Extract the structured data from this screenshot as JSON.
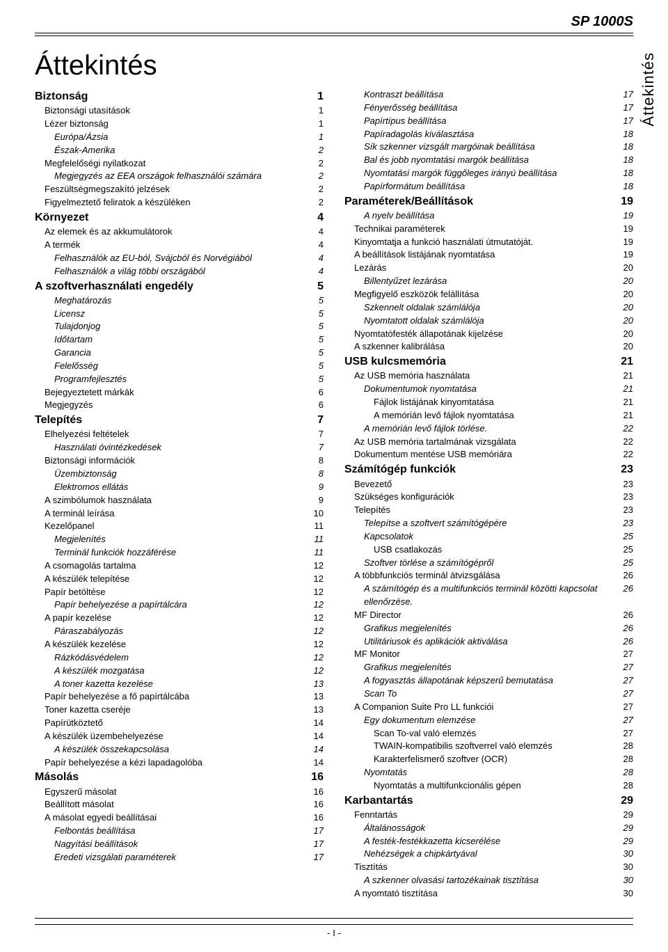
{
  "header": {
    "model": "SP 1000S",
    "side_tab": "Áttekintés",
    "title": "Áttekintés",
    "footer": "- I -"
  },
  "left": [
    {
      "t": "Biztonság",
      "p": "1",
      "lvl": 0
    },
    {
      "t": "Biztonsági utasítások",
      "p": "1",
      "lvl": 1
    },
    {
      "t": "Lézer biztonság",
      "p": "1",
      "lvl": 1
    },
    {
      "t": "Európa/Ázsia",
      "p": "1",
      "lvl": 2,
      "i": true
    },
    {
      "t": "Észak-Amerika",
      "p": "2",
      "lvl": 2,
      "i": true
    },
    {
      "t": "Megfelelőségi nyilatkozat",
      "p": "2",
      "lvl": 1
    },
    {
      "t": "Megjegyzés az EEA országok felhasználói számára",
      "p": "2",
      "lvl": 2,
      "i": true
    },
    {
      "t": "Feszültségmegszakító jelzések",
      "p": "2",
      "lvl": 1
    },
    {
      "t": "Figyelmeztető feliratok a készüléken",
      "p": "2",
      "lvl": 1
    },
    {
      "t": "Környezet",
      "p": "4",
      "lvl": 0
    },
    {
      "t": "Az elemek és az akkumulátorok",
      "p": "4",
      "lvl": 1
    },
    {
      "t": "A termék",
      "p": "4",
      "lvl": 1
    },
    {
      "t": "Felhasználók az EU-ból, Svájcból és Norvégiából",
      "p": "4",
      "lvl": 2,
      "i": true
    },
    {
      "t": "Felhasználók a világ többi országából",
      "p": "4",
      "lvl": 2,
      "i": true
    },
    {
      "t": "A szoftverhasználati engedély",
      "p": "5",
      "lvl": 0
    },
    {
      "t": "Meghatározás",
      "p": "5",
      "lvl": 2,
      "i": true
    },
    {
      "t": "Licensz",
      "p": "5",
      "lvl": 2,
      "i": true
    },
    {
      "t": "Tulajdonjog",
      "p": "5",
      "lvl": 2,
      "i": true
    },
    {
      "t": "Időtartam",
      "p": "5",
      "lvl": 2,
      "i": true
    },
    {
      "t": "Garancia",
      "p": "5",
      "lvl": 2,
      "i": true
    },
    {
      "t": "Felelősség",
      "p": "5",
      "lvl": 2,
      "i": true
    },
    {
      "t": "Programfejlesztés",
      "p": "5",
      "lvl": 2,
      "i": true
    },
    {
      "t": "Bejegyeztetett márkák",
      "p": "6",
      "lvl": 1
    },
    {
      "t": "Megjegyzés",
      "p": "6",
      "lvl": 1
    },
    {
      "t": "Telepítés",
      "p": "7",
      "lvl": 0
    },
    {
      "t": "Elhelyezési feltételek",
      "p": "7",
      "lvl": 1
    },
    {
      "t": "Használati óvintézkedések",
      "p": "7",
      "lvl": 2,
      "i": true
    },
    {
      "t": "Biztonsági információk",
      "p": "8",
      "lvl": 1
    },
    {
      "t": "Üzembiztonság",
      "p": "8",
      "lvl": 2,
      "i": true
    },
    {
      "t": "Elektromos ellátás",
      "p": "9",
      "lvl": 2,
      "i": true
    },
    {
      "t": "A szimbólumok használata",
      "p": "9",
      "lvl": 1
    },
    {
      "t": "A terminál leírása",
      "p": "10",
      "lvl": 1
    },
    {
      "t": "Kezelőpanel",
      "p": "11",
      "lvl": 1
    },
    {
      "t": "Megjelenítés",
      "p": "11",
      "lvl": 2,
      "i": true
    },
    {
      "t": "Terminál funkciók hozzáférése",
      "p": "11",
      "lvl": 2,
      "i": true
    },
    {
      "t": "A csomagolás tartalma",
      "p": "12",
      "lvl": 1
    },
    {
      "t": "A készülék telepítése",
      "p": "12",
      "lvl": 1
    },
    {
      "t": "Papír betöltése",
      "p": "12",
      "lvl": 1
    },
    {
      "t": "Papír behelyezése a papírtálcára",
      "p": "12",
      "lvl": 2,
      "i": true
    },
    {
      "t": "A papír kezelése",
      "p": "12",
      "lvl": 1
    },
    {
      "t": "Páraszabályozás",
      "p": "12",
      "lvl": 2,
      "i": true
    },
    {
      "t": "A készülék kezelése",
      "p": "12",
      "lvl": 1
    },
    {
      "t": "Rázkódásvédelem",
      "p": "12",
      "lvl": 2,
      "i": true
    },
    {
      "t": "A készülék mozgatása",
      "p": "12",
      "lvl": 2,
      "i": true
    },
    {
      "t": "A toner kazetta kezelése",
      "p": "13",
      "lvl": 2,
      "i": true
    },
    {
      "t": "Papír behelyezése a fő papírtálcába",
      "p": "13",
      "lvl": 1
    },
    {
      "t": "Toner kazetta cseréje",
      "p": "13",
      "lvl": 1
    },
    {
      "t": "Papírütköztető",
      "p": "14",
      "lvl": 1
    },
    {
      "t": "A készülék üzembehelyezése",
      "p": "14",
      "lvl": 1
    },
    {
      "t": "A készülék összekapcsolása",
      "p": "14",
      "lvl": 2,
      "i": true
    },
    {
      "t": "Papír behelyezése a kézi lapadagolóba",
      "p": "14",
      "lvl": 1
    },
    {
      "t": "Másolás",
      "p": "16",
      "lvl": 0
    },
    {
      "t": "Egyszerű másolat",
      "p": "16",
      "lvl": 1
    },
    {
      "t": "Beállított másolat",
      "p": "16",
      "lvl": 1
    },
    {
      "t": "A másolat egyedi beállításai",
      "p": "16",
      "lvl": 1
    },
    {
      "t": "Felbontás beállítása",
      "p": "17",
      "lvl": 2,
      "i": true
    },
    {
      "t": "Nagyítási beállítások",
      "p": "17",
      "lvl": 2,
      "i": true
    },
    {
      "t": "Eredeti vizsgálati paraméterek",
      "p": "17",
      "lvl": 2,
      "i": true
    }
  ],
  "right": [
    {
      "t": "Kontraszt beállítása",
      "p": "17",
      "lvl": 2,
      "i": true
    },
    {
      "t": "Fényerősség beállítása",
      "p": "17",
      "lvl": 2,
      "i": true
    },
    {
      "t": "Papírtípus beállítása",
      "p": "17",
      "lvl": 2,
      "i": true
    },
    {
      "t": "Papíradagolás kiválasztása",
      "p": "18",
      "lvl": 2,
      "i": true
    },
    {
      "t": "Sík szkenner vizsgált margóinak beállítása",
      "p": "18",
      "lvl": 2,
      "i": true
    },
    {
      "t": "Bal és jobb nyomtatási margók beállítása",
      "p": "18",
      "lvl": 2,
      "i": true
    },
    {
      "t": "Nyomtatási margók függőleges irányú beállítása",
      "p": "18",
      "lvl": 2,
      "i": true
    },
    {
      "t": "Papírformátum beállítása",
      "p": "18",
      "lvl": 2,
      "i": true
    },
    {
      "t": "Paraméterek/Beállítások",
      "p": "19",
      "lvl": 0
    },
    {
      "t": "A nyelv beállítása",
      "p": "19",
      "lvl": 2,
      "i": true
    },
    {
      "t": "Technikai paraméterek",
      "p": "19",
      "lvl": 1
    },
    {
      "t": "Kinyomtatja a funkció használati útmutatóját.",
      "p": "19",
      "lvl": 1
    },
    {
      "t": "A beállítások listájának nyomtatása",
      "p": "19",
      "lvl": 1
    },
    {
      "t": "Lezárás",
      "p": "20",
      "lvl": 1
    },
    {
      "t": "Billentyűzet lezárása",
      "p": "20",
      "lvl": 2,
      "i": true
    },
    {
      "t": "Megfigyelő eszközök felállítása",
      "p": "20",
      "lvl": 1
    },
    {
      "t": "Szkennelt oldalak számlálója",
      "p": "20",
      "lvl": 2,
      "i": true
    },
    {
      "t": "Nyomtatott oldalak számlálója",
      "p": "20",
      "lvl": 2,
      "i": true
    },
    {
      "t": "Nyomtatófesték állapotának kijelzése",
      "p": "20",
      "lvl": 1
    },
    {
      "t": "A szkenner kalibrálása",
      "p": "20",
      "lvl": 1
    },
    {
      "t": "USB kulcsmemória",
      "p": "21",
      "lvl": 0
    },
    {
      "t": "Az USB memória használata",
      "p": "21",
      "lvl": 1
    },
    {
      "t": "Dokumentumok nyomtatása",
      "p": "21",
      "lvl": 2,
      "i": true
    },
    {
      "t": "Fájlok listájának kinyomtatása",
      "p": "21",
      "lvl": 3
    },
    {
      "t": "A memórián levő fájlok nyomtatása",
      "p": "21",
      "lvl": 3
    },
    {
      "t": "A memórián levő fájlok törlése.",
      "p": "22",
      "lvl": 2,
      "i": true
    },
    {
      "t": "Az USB memória tartalmának vizsgálata",
      "p": "22",
      "lvl": 1
    },
    {
      "t": "Dokumentum mentése USB memóriára",
      "p": "22",
      "lvl": 1
    },
    {
      "t": "Számítógép funkciók",
      "p": "23",
      "lvl": 0
    },
    {
      "t": "Bevezető",
      "p": "23",
      "lvl": 1
    },
    {
      "t": "Szükséges konfigurációk",
      "p": "23",
      "lvl": 1
    },
    {
      "t": "Telepítés",
      "p": "23",
      "lvl": 1
    },
    {
      "t": "Telepítse a szoftvert számítógépére",
      "p": "23",
      "lvl": 2,
      "i": true
    },
    {
      "t": "Kapcsolatok",
      "p": "25",
      "lvl": 2,
      "i": true
    },
    {
      "t": "USB csatlakozás",
      "p": "25",
      "lvl": 3
    },
    {
      "t": "Szoftver törlése a számítógépről",
      "p": "25",
      "lvl": 2,
      "i": true
    },
    {
      "t": "A többfunkciós terminál átvizsgálása",
      "p": "26",
      "lvl": 1
    },
    {
      "t": "A számítógép és a multifunkciós terminál közötti kapcsolat ellenőrzése.",
      "p": "26",
      "lvl": 2,
      "i": true
    },
    {
      "t": "MF Director",
      "p": "26",
      "lvl": 1
    },
    {
      "t": "Grafikus megjelenítés",
      "p": "26",
      "lvl": 2,
      "i": true
    },
    {
      "t": "Utilitáriusok és aplikációk aktiválása",
      "p": "26",
      "lvl": 2,
      "i": true
    },
    {
      "t": "MF Monitor",
      "p": "27",
      "lvl": 1
    },
    {
      "t": "Grafikus megjelenítés",
      "p": "27",
      "lvl": 2,
      "i": true
    },
    {
      "t": "A fogyasztás állapotának képszerű bemutatása",
      "p": "27",
      "lvl": 2,
      "i": true
    },
    {
      "t": "Scan To",
      "p": "27",
      "lvl": 2,
      "i": true
    },
    {
      "t": "A Companion Suite Pro LL funkciói",
      "p": "27",
      "lvl": 1
    },
    {
      "t": "Egy dokumentum elemzése",
      "p": "27",
      "lvl": 2,
      "i": true
    },
    {
      "t": "Scan To-val való elemzés",
      "p": "27",
      "lvl": 3
    },
    {
      "t": "TWAIN-kompatibilis szoftverrel való elemzés",
      "p": "28",
      "lvl": 3
    },
    {
      "t": "Karakterfelismerő szoftver (OCR)",
      "p": "28",
      "lvl": 3
    },
    {
      "t": "Nyomtatás",
      "p": "28",
      "lvl": 2,
      "i": true
    },
    {
      "t": "Nyomtatás a multifunkcionális gépen",
      "p": "28",
      "lvl": 3
    },
    {
      "t": "Karbantartás",
      "p": "29",
      "lvl": 0
    },
    {
      "t": "Fenntartás",
      "p": "29",
      "lvl": 1
    },
    {
      "t": "Általánosságok",
      "p": "29",
      "lvl": 2,
      "i": true
    },
    {
      "t": "A festék-festékkazetta kicserélése",
      "p": "29",
      "lvl": 2,
      "i": true
    },
    {
      "t": "Nehézségek a chipkártyával",
      "p": "30",
      "lvl": 2,
      "i": true
    },
    {
      "t": "Tisztítás",
      "p": "30",
      "lvl": 1
    },
    {
      "t": "A szkenner olvasási tartozékainak tisztítása",
      "p": "30",
      "lvl": 2,
      "i": true
    },
    {
      "t": "A nyomtató tisztítása",
      "p": "30",
      "lvl": 1
    }
  ]
}
